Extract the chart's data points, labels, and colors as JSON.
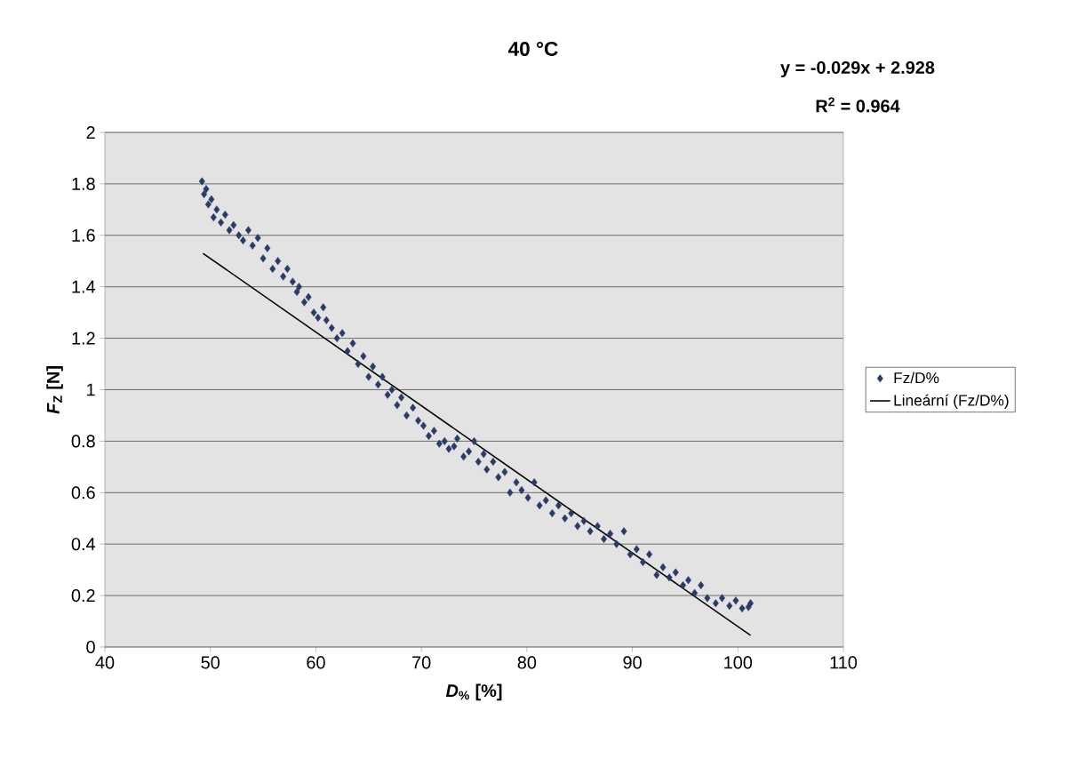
{
  "chart_data": {
    "type": "scatter",
    "title": "40 °C",
    "xlabel": "*D*$_{%}$ [%]",
    "ylabel": "*F*$_{Z}$ [N]",
    "annotations": [
      "y = -0.029x + 2.928",
      "R$^{2}$ = 0.964"
    ],
    "xlim": [
      40,
      110
    ],
    "xticks": [
      40,
      50,
      60,
      70,
      80,
      90,
      100,
      110
    ],
    "ylim": [
      0,
      2
    ],
    "yticks": [
      0,
      0.2,
      0.4,
      0.6,
      0.8,
      1,
      1.2,
      1.4,
      1.6,
      1.8,
      2
    ],
    "grid": "y",
    "legend": "right",
    "series": [
      {
        "name": "Fz/D%",
        "marker": "diamond",
        "color": "#2b3a67",
        "x": [
          49.2,
          49.4,
          49.6,
          49.8,
          50.1,
          50.3,
          50.6,
          51,
          51.4,
          51.8,
          52.2,
          52.7,
          53.1,
          53.6,
          54,
          54.5,
          55,
          55.4,
          55.9,
          56.4,
          56.9,
          57.3,
          57.8,
          58.2,
          58.4,
          58.9,
          59.3,
          59.8,
          60.2,
          60.7,
          61,
          61.5,
          62,
          62.5,
          63,
          63.5,
          64,
          64.5,
          65,
          65.4,
          65.9,
          66.3,
          66.8,
          67.2,
          67.7,
          68.1,
          68.6,
          69.2,
          69.7,
          70.2,
          70.7,
          71.2,
          71.7,
          72.2,
          72.6,
          73.1,
          73.4,
          74,
          74.5,
          75,
          75.4,
          75.9,
          76.2,
          76.8,
          77.3,
          77.9,
          78.4,
          79,
          79.5,
          80.1,
          80.7,
          81.2,
          81.8,
          82.4,
          83,
          83.6,
          84.2,
          84.8,
          85.4,
          86,
          86.7,
          87.3,
          87.9,
          88.5,
          89.2,
          89.8,
          90.4,
          91,
          91.6,
          92.3,
          92.9,
          93.5,
          94.1,
          94.8,
          95.3,
          95.9,
          96.5,
          97.1,
          97.9,
          98.5,
          99.2,
          99.8,
          100.4,
          101,
          101.2
        ],
        "values": [
          1.81,
          1.76,
          1.78,
          1.72,
          1.74,
          1.67,
          1.7,
          1.65,
          1.68,
          1.62,
          1.64,
          1.6,
          1.58,
          1.62,
          1.56,
          1.59,
          1.51,
          1.55,
          1.47,
          1.5,
          1.44,
          1.47,
          1.42,
          1.38,
          1.4,
          1.34,
          1.36,
          1.3,
          1.28,
          1.32,
          1.27,
          1.24,
          1.2,
          1.22,
          1.15,
          1.18,
          1.1,
          1.13,
          1.05,
          1.09,
          1.02,
          1.05,
          0.98,
          1.0,
          0.94,
          0.97,
          0.9,
          0.93,
          0.88,
          0.86,
          0.82,
          0.84,
          0.79,
          0.8,
          0.77,
          0.78,
          0.81,
          0.74,
          0.76,
          0.8,
          0.72,
          0.75,
          0.69,
          0.72,
          0.66,
          0.68,
          0.6,
          0.64,
          0.61,
          0.58,
          0.64,
          0.55,
          0.57,
          0.52,
          0.55,
          0.5,
          0.52,
          0.47,
          0.49,
          0.45,
          0.47,
          0.42,
          0.44,
          0.4,
          0.45,
          0.36,
          0.38,
          0.33,
          0.36,
          0.28,
          0.31,
          0.27,
          0.29,
          0.24,
          0.26,
          0.21,
          0.24,
          0.19,
          0.17,
          0.19,
          0.16,
          0.18,
          0.15,
          0.155,
          0.17
        ]
      },
      {
        "name": "Lineární (Fz/D%)",
        "type": "line",
        "marker": "none",
        "color": "#000000",
        "x": [
          49.3,
          101.2
        ],
        "values": [
          1.53,
          0.045
        ]
      }
    ]
  }
}
